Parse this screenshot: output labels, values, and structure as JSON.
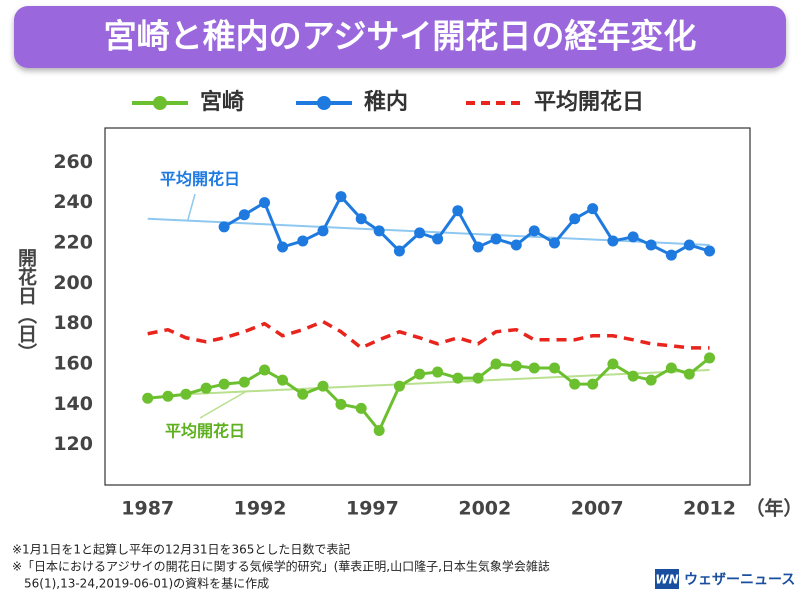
{
  "chart_data": {
    "type": "line",
    "title": "宮崎と稚内のアジサイ開花日の経年変化",
    "y_label": "開花日（日）",
    "x_unit": "（年）",
    "x": [
      1987.0,
      1987.9,
      1988.7,
      1989.6,
      1990.4,
      1991.3,
      1992.2,
      1993.0,
      1993.9,
      1994.8,
      1995.6,
      1996.5,
      1997.3,
      1998.2,
      1999.1,
      1999.9,
      2000.8,
      2001.7,
      2002.5,
      2003.4,
      2004.2,
      2005.1,
      2006.0,
      2006.8,
      2007.7,
      2008.6,
      2009.4,
      2010.3,
      2011.1,
      2012.0
    ],
    "xlim": [
      1985.1,
      2013.8
    ],
    "xticks": [
      1987,
      1992,
      1997,
      2002,
      2007,
      2012
    ],
    "ylim": [
      100,
      277
    ],
    "yticks": [
      120,
      140,
      160,
      180,
      200,
      220,
      240,
      260
    ],
    "series": [
      {
        "name": "宮崎",
        "color": "#6cbf2e",
        "markers": true,
        "dash": false,
        "values": [
          143,
          144,
          145,
          148,
          150,
          151,
          157,
          152,
          145,
          149,
          140,
          138,
          127,
          149,
          155,
          156,
          153,
          153,
          160,
          159,
          158,
          158,
          150,
          150,
          160,
          154,
          152,
          158,
          155,
          163
        ]
      },
      {
        "name": "稚内",
        "color": "#1f7ae0",
        "markers": true,
        "dash": false,
        "values": [
          null,
          null,
          null,
          null,
          228,
          234,
          240,
          218,
          221,
          226,
          243,
          232,
          226,
          216,
          225,
          222,
          236,
          218,
          222,
          219,
          226,
          220,
          232,
          237,
          221,
          223,
          219,
          214,
          219,
          216
        ]
      },
      {
        "name": "平均開花日",
        "color": "#e8241c",
        "markers": false,
        "dash": true,
        "values": [
          175,
          177,
          173,
          171,
          173,
          176,
          180,
          174,
          177,
          181,
          176,
          168,
          172,
          176,
          173,
          170,
          173,
          170,
          176,
          177,
          172,
          172,
          172,
          174,
          174,
          172,
          170,
          169,
          168,
          168
        ]
      }
    ],
    "trendlines": [
      {
        "label": "平均開花日",
        "color": "#8ec8f0",
        "text_color": "#1f7ae0",
        "x": [
          1987.0,
          2012.0
        ],
        "values": [
          232,
          219
        ]
      },
      {
        "label": "平均開花日",
        "color": "#b8e08e",
        "text_color": "#5fb020",
        "x": [
          1988.7,
          2012.0
        ],
        "values": [
          145,
          157
        ]
      }
    ]
  },
  "notes": [
    "※1月1日を1と起算し平年の12月31日を365とした日数で表記",
    "※「日本におけるアジサイの開花日に関する気候学的研究」(華表正明,山口隆子,日本生気象学会雑誌",
    "56(1),13-24,2019-06-01)の資料を基に作成"
  ],
  "logo": {
    "mark": "WN",
    "text": "ウェザーニュース"
  }
}
